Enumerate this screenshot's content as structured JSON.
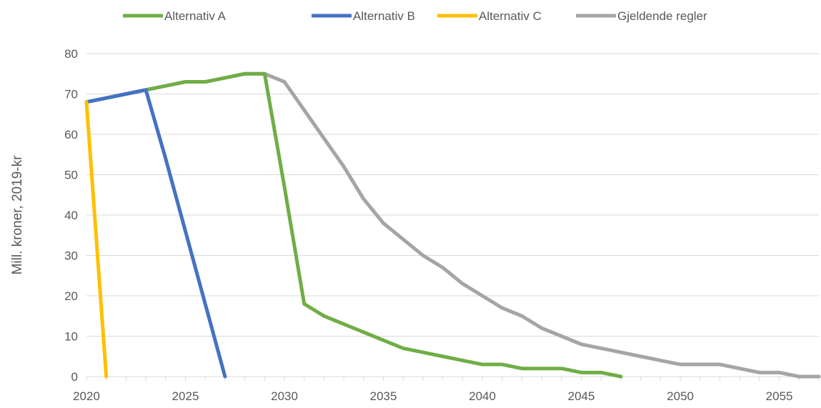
{
  "chart_data": {
    "type": "line",
    "title": "",
    "xlabel": "",
    "ylabel": "Mill. kroner, 2019-kr",
    "xlim": [
      2020,
      2057
    ],
    "ylim": [
      0,
      80
    ],
    "grid": true,
    "legend_position": "top",
    "x_ticks": [
      "2020",
      "2025",
      "2030",
      "2035",
      "2040",
      "2045",
      "2050",
      "2055"
    ],
    "y_ticks": [
      "0",
      "10",
      "20",
      "30",
      "40",
      "50",
      "60",
      "70",
      "80"
    ],
    "series": [
      {
        "name": "Alternativ A",
        "color": "#70ad47",
        "x": [
          2020,
          2021,
          2022,
          2023,
          2024,
          2025,
          2026,
          2027,
          2028,
          2029,
          2030,
          2031,
          2032,
          2033,
          2034,
          2035,
          2036,
          2037,
          2038,
          2039,
          2040,
          2041,
          2042,
          2043,
          2044,
          2045,
          2046,
          2047
        ],
        "y": [
          68,
          69,
          70,
          71,
          72,
          73,
          73,
          74,
          75,
          75,
          47,
          18,
          15,
          13,
          11,
          9,
          7,
          6,
          5,
          4,
          3,
          3,
          2,
          2,
          2,
          1,
          1,
          0
        ]
      },
      {
        "name": "Alternativ B",
        "color": "#4472c4",
        "x": [
          2020,
          2021,
          2022,
          2023,
          2024,
          2025,
          2026,
          2027
        ],
        "y": [
          68,
          69,
          70,
          71,
          54,
          36,
          18,
          0
        ]
      },
      {
        "name": "Alternativ C",
        "color": "#ffc000",
        "x": [
          2020,
          2021
        ],
        "y": [
          68,
          0
        ]
      },
      {
        "name": "Gjeldende regler",
        "color": "#a5a5a5",
        "x": [
          2020,
          2021,
          2022,
          2023,
          2024,
          2025,
          2026,
          2027,
          2028,
          2029,
          2030,
          2031,
          2032,
          2033,
          2034,
          2035,
          2036,
          2037,
          2038,
          2039,
          2040,
          2041,
          2042,
          2043,
          2044,
          2045,
          2046,
          2047,
          2048,
          2049,
          2050,
          2051,
          2052,
          2053,
          2054,
          2055,
          2056,
          2057
        ],
        "y": [
          68,
          69,
          70,
          71,
          72,
          73,
          73,
          74,
          75,
          75,
          73,
          66,
          59,
          52,
          44,
          38,
          34,
          30,
          27,
          23,
          20,
          17,
          15,
          12,
          10,
          8,
          7,
          6,
          5,
          4,
          3,
          3,
          3,
          2,
          1,
          1,
          0,
          0
        ]
      }
    ]
  }
}
